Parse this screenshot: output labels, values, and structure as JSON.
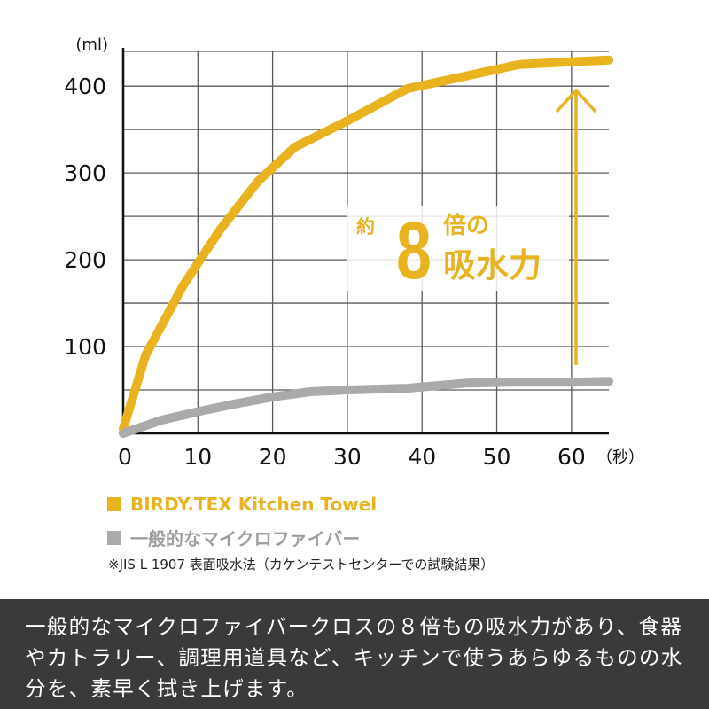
{
  "chart_data": {
    "type": "line",
    "title": "",
    "xlabel": "（秒）",
    "ylabel": "(ml)",
    "xlim": [
      0,
      65
    ],
    "ylim": [
      0,
      440
    ],
    "x_ticks": [
      0,
      10,
      20,
      30,
      40,
      50,
      60
    ],
    "y_ticks": [
      100,
      200,
      300,
      400
    ],
    "grid": true,
    "series": [
      {
        "name": "BIRDY.TEX Kitchen Towel",
        "color": "#e8b31f",
        "points": [
          [
            0,
            5
          ],
          [
            3,
            90
          ],
          [
            8,
            170
          ],
          [
            13,
            235
          ],
          [
            18,
            290
          ],
          [
            23,
            330
          ],
          [
            30,
            360
          ],
          [
            38,
            397
          ],
          [
            45,
            410
          ],
          [
            53,
            425
          ],
          [
            60,
            428
          ],
          [
            65,
            430
          ]
        ]
      },
      {
        "name": "一般的なマイクロファイバー",
        "color": "#aaaaaa",
        "points": [
          [
            0,
            0
          ],
          [
            5,
            15
          ],
          [
            10,
            25
          ],
          [
            15,
            34
          ],
          [
            20,
            42
          ],
          [
            25,
            48
          ],
          [
            30,
            50
          ],
          [
            38,
            52
          ],
          [
            46,
            58
          ],
          [
            52,
            59
          ],
          [
            60,
            59
          ],
          [
            65,
            60
          ]
        ]
      }
    ],
    "annotation": {
      "prefix": "約",
      "number": "8",
      "suffix_top": "倍の",
      "suffix_bottom": "吸水力",
      "color": "#e8b31f"
    }
  },
  "legend": [
    {
      "label": "BIRDY.TEX Kitchen Towel",
      "color": "#e8b31f",
      "text_color": "#e8b31f"
    },
    {
      "label": "一般的なマイクロファイバー",
      "color": "#aaaaaa",
      "text_color": "#9e9e9e"
    }
  ],
  "note": "※JIS L 1907 表面吸水法（カケンテストセンターでの試験結果）",
  "footer": {
    "text": "一般的なマイクロファイバークロスの８倍もの吸水力があり、食器やカトラリー、調理用道具など、キッチンで使うあらゆるものの水分を、素早く拭き上げます。"
  }
}
